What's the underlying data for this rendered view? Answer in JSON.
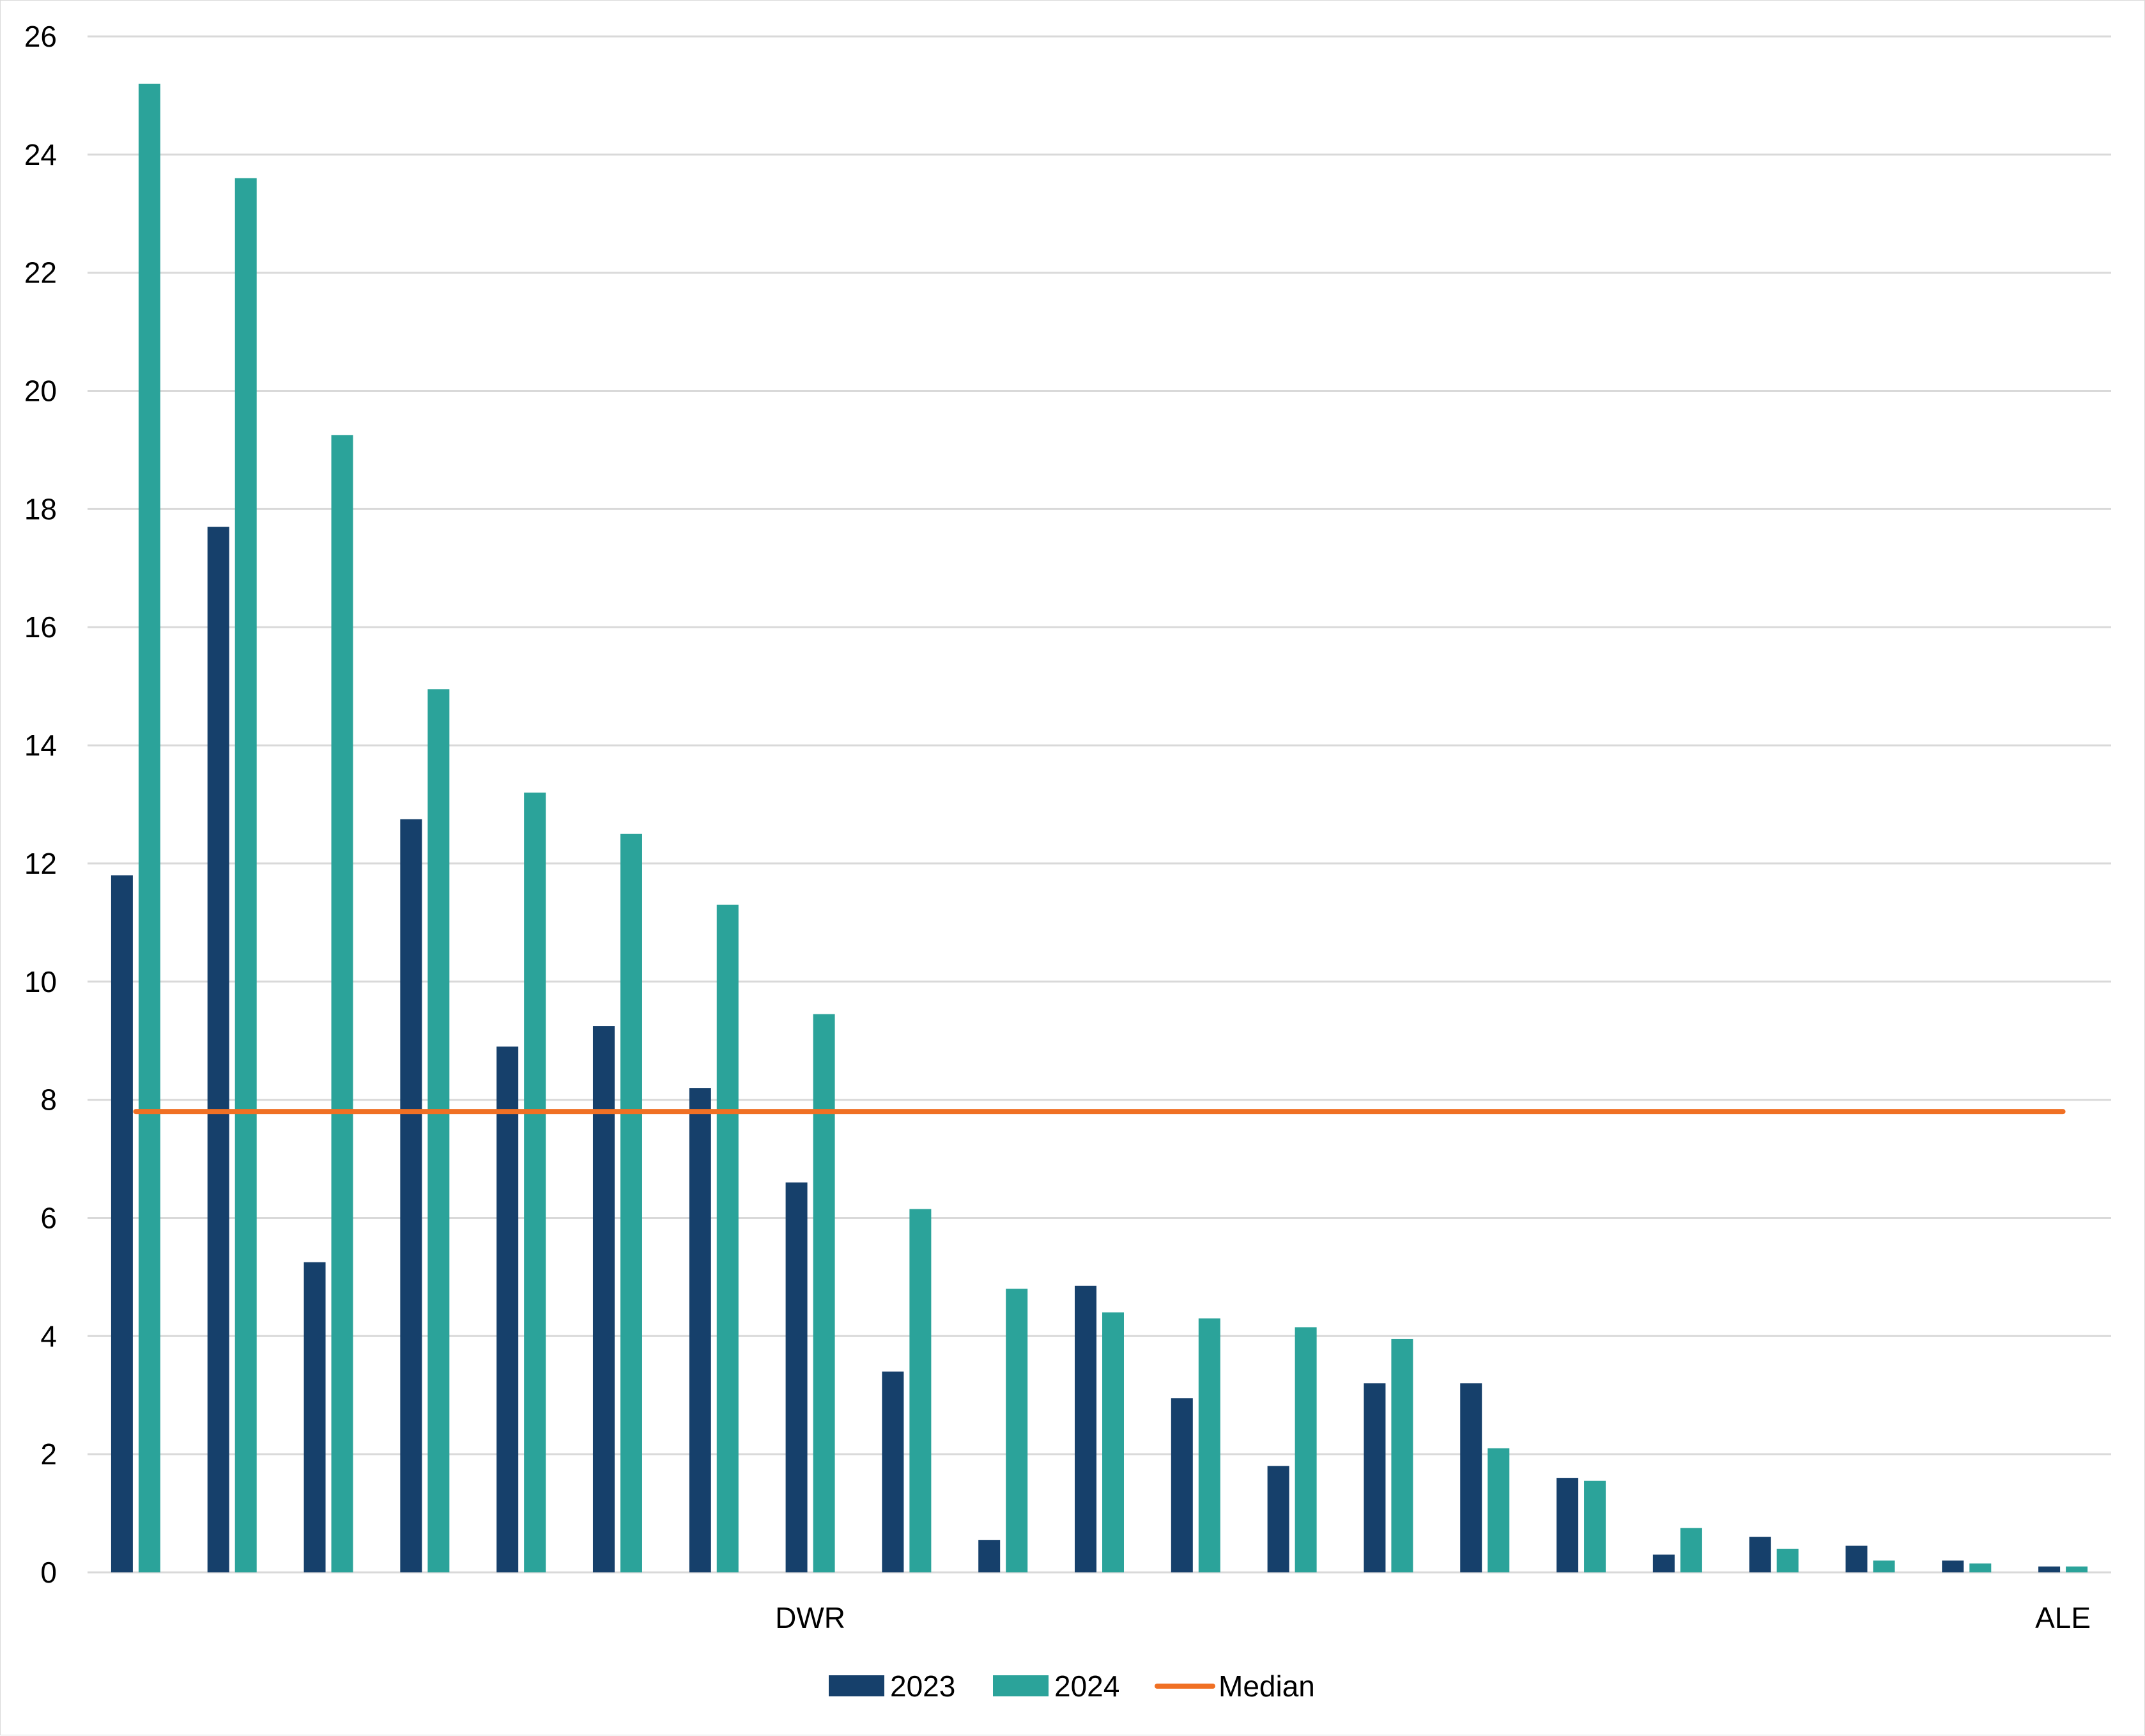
{
  "chart_data": {
    "type": "bar",
    "title": "",
    "xlabel": "",
    "ylabel": "",
    "ylim": [
      0,
      26
    ],
    "yticks": [
      0,
      2,
      4,
      6,
      8,
      10,
      12,
      14,
      16,
      18,
      20,
      22,
      24,
      26
    ],
    "grid": true,
    "legend_position": "bottom",
    "categories": [
      "",
      "",
      "",
      "",
      "",
      "",
      "",
      "DWR",
      "",
      "",
      "",
      "",
      "",
      "",
      "",
      "",
      "",
      "",
      "",
      "",
      "ALE"
    ],
    "series": [
      {
        "name": "2023",
        "color": "#16406b",
        "values": [
          11.8,
          17.7,
          5.25,
          12.75,
          8.9,
          9.25,
          8.2,
          6.6,
          3.4,
          0.55,
          4.85,
          2.95,
          1.8,
          3.2,
          3.2,
          1.6,
          0.3,
          0.6,
          0.45,
          0.2,
          0.1
        ]
      },
      {
        "name": "2024",
        "color": "#2ba39a",
        "values": [
          25.2,
          23.6,
          19.25,
          14.95,
          13.2,
          12.5,
          11.3,
          9.45,
          6.15,
          4.8,
          4.4,
          4.3,
          4.15,
          3.95,
          2.1,
          1.55,
          0.75,
          0.4,
          0.2,
          0.15,
          0.1
        ]
      }
    ],
    "reference_lines": [
      {
        "name": "Median",
        "color": "#f07024",
        "value": 7.8
      }
    ]
  }
}
